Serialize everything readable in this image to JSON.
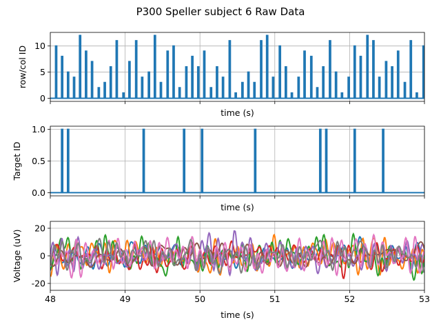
{
  "title": "P300 Speller subject 6 Raw Data",
  "chart_data": [
    {
      "type": "line",
      "ylabel": "row/col ID",
      "xlabel": "time (s)",
      "xlim": [
        48,
        53
      ],
      "ylim": [
        -0.6,
        12.6
      ],
      "yticks": [
        0,
        5,
        10
      ],
      "show_xtick_labels": false,
      "grid": true,
      "color": "#1f77b4",
      "flash_width_s": 0.016,
      "series": [
        {
          "x": [
            48.07,
            48.15,
            48.23,
            48.31,
            48.39,
            48.47,
            48.55,
            48.64,
            48.72,
            48.8,
            48.88,
            48.97,
            49.05,
            49.14,
            49.22,
            49.31,
            49.39,
            49.47,
            49.56,
            49.64,
            49.72,
            49.81,
            49.89,
            49.97,
            50.05,
            50.14,
            50.22,
            50.3,
            50.39,
            50.47,
            50.56,
            50.64,
            50.72,
            50.81,
            50.89,
            50.97,
            51.06,
            51.14,
            51.22,
            51.31,
            51.39,
            51.48,
            51.56,
            51.64,
            51.73,
            51.81,
            51.89,
            51.98,
            52.06,
            52.14,
            52.23,
            52.31,
            52.39,
            52.48,
            52.56,
            52.64,
            52.73,
            52.81,
            52.89,
            52.98
          ],
          "y": [
            10,
            8,
            5,
            4,
            12,
            9,
            7,
            2,
            3,
            6,
            11,
            1,
            7,
            11,
            4,
            5,
            12,
            3,
            9,
            10,
            2,
            6,
            8,
            6,
            9,
            2,
            6,
            4,
            11,
            1,
            3,
            5,
            3,
            11,
            12,
            4,
            10,
            6,
            1,
            4,
            9,
            8,
            2,
            6,
            11,
            5,
            1,
            4,
            10,
            8,
            12,
            11,
            4,
            7,
            6,
            9,
            3,
            11,
            1,
            10
          ]
        }
      ]
    },
    {
      "type": "line",
      "ylabel": "Target ID",
      "xlabel": "time (s)",
      "xlim": [
        48,
        53
      ],
      "ylim": [
        -0.05,
        1.05
      ],
      "yticks": [
        0.0,
        0.5,
        1.0
      ],
      "ytick_labels": [
        "0.0",
        "0.5",
        "1.0"
      ],
      "show_xtick_labels": false,
      "grid": true,
      "color": "#1f77b4",
      "flash_width_s": 0.016,
      "series": [
        {
          "x": [
            48.15,
            48.23,
            49.24,
            49.78,
            50.02,
            50.73,
            51.6,
            51.68,
            52.06,
            52.44
          ],
          "y": [
            1,
            1,
            1,
            1,
            1,
            1,
            1,
            1,
            1,
            1
          ]
        }
      ]
    },
    {
      "type": "line",
      "ylabel": "Voltage (uV)",
      "xlabel": "time (s)",
      "xlim": [
        48,
        53
      ],
      "ylim": [
        -25,
        25
      ],
      "yticks": [
        -20,
        0,
        20
      ],
      "xticks": [
        48,
        49,
        50,
        51,
        52,
        53
      ],
      "show_xtick_labels": true,
      "grid": true,
      "series": [
        {
          "color": "#1f77b4"
        },
        {
          "color": "#ff7f0e"
        },
        {
          "color": "#2ca02c"
        },
        {
          "color": "#d62728"
        },
        {
          "color": "#9467bd"
        },
        {
          "color": "#8c564b"
        },
        {
          "color": "#e377c2"
        },
        {
          "color": "#7f7f7f"
        }
      ]
    }
  ]
}
